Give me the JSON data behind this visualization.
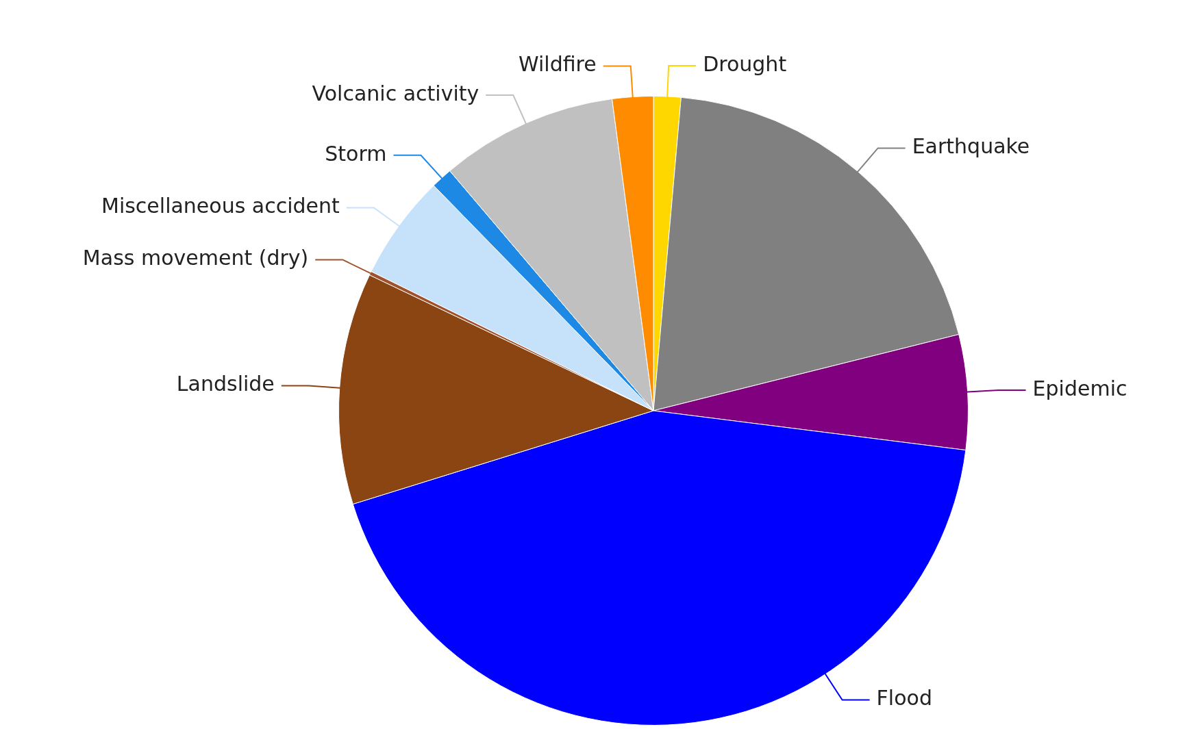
{
  "chart_data": {
    "type": "pie",
    "categories": [
      "Drought",
      "Earthquake",
      "Epidemic",
      "Flood",
      "Landslide",
      "Mass movement (dry)",
      "Miscellaneous accident",
      "Storm",
      "Volcanic activity",
      "Wildfire"
    ],
    "values": [
      1.4,
      19.7,
      5.9,
      43.2,
      11.9,
      0.2,
      5.4,
      1.1,
      9.1,
      2.1
    ],
    "colors": [
      "#ffd700",
      "#808080",
      "#800080",
      "#0000ff",
      "#8b4513",
      "#a0522d",
      "#c6e2fb",
      "#1e88e5",
      "#c0c0c0",
      "#ff8c00"
    ]
  }
}
